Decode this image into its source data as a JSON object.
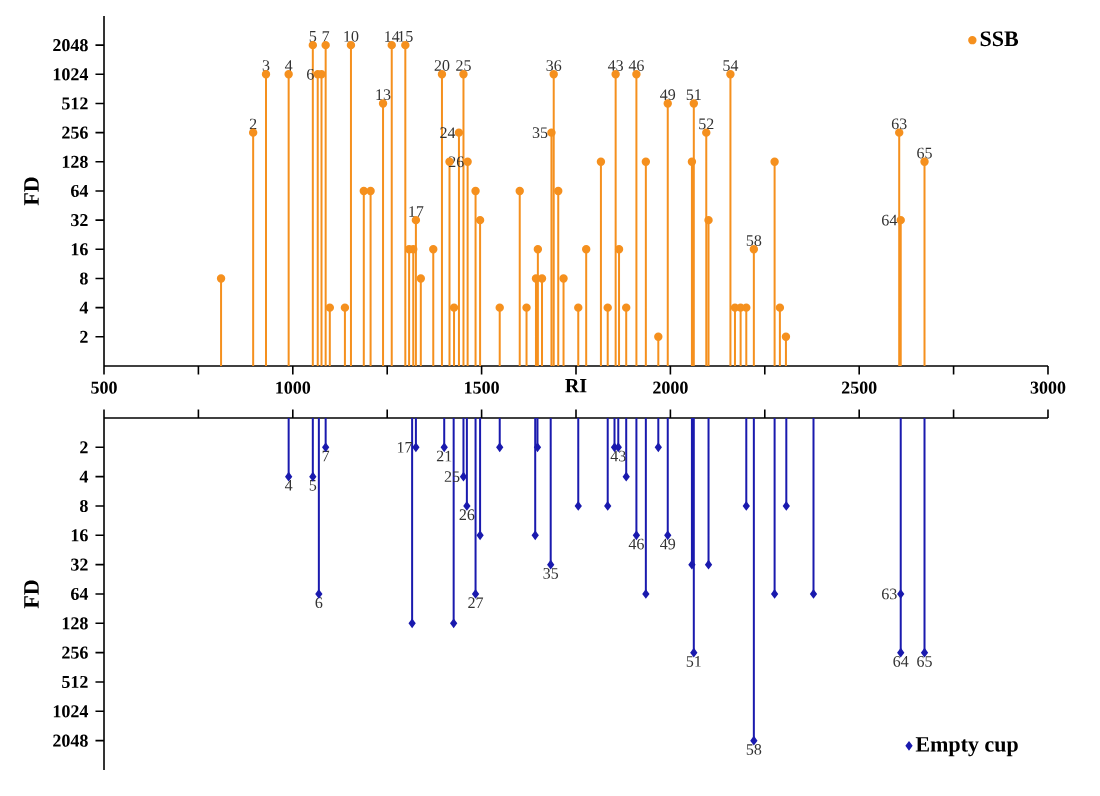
{
  "chart_data": [
    {
      "type": "lollipop",
      "xlabel": "RI",
      "ylabel": "FD",
      "log": "y",
      "legend": "top right",
      "marker": "circle",
      "tick_labels": "both",
      "xlim": [
        500,
        3000
      ],
      "xticks": [
        500,
        {
          "value": 750,
          "label": null
        },
        1000,
        {
          "value": 1250,
          "label": null
        },
        1500,
        {
          "value": 1750,
          "label": null
        },
        2000,
        {
          "value": 2250,
          "label": null
        },
        2500,
        {
          "value": 2750,
          "label": null
        },
        3000
      ],
      "ylim": [
        1,
        4096
      ],
      "yticks": [
        2,
        4,
        8,
        16,
        32,
        64,
        128,
        256,
        512,
        1024,
        2048
      ],
      "series": [
        {
          "name": "SSB",
          "color": "#f5901e",
          "x": [
            810,
            895,
            929,
            989,
            1053,
            1066,
            1076,
            1087,
            1098,
            1138,
            1154,
            1188,
            1206,
            1239,
            1262,
            1298,
            1308,
            1319,
            1326,
            1339,
            1372,
            1395,
            1415,
            1427,
            1440,
            1452,
            1463,
            1484,
            1496,
            1548,
            1601,
            1619,
            1644,
            1649,
            1660,
            1685,
            1691,
            1703,
            1717,
            1756,
            1777,
            1816,
            1834,
            1855,
            1864,
            1883,
            1910,
            1935,
            1968,
            1993,
            2057,
            2062,
            2095,
            2101,
            2159,
            2171,
            2186,
            2201,
            2221,
            2276,
            2290,
            2306,
            2606,
            2610,
            2673
          ],
          "values": [
            8,
            256,
            1024,
            1024,
            2048,
            1024,
            1024,
            2048,
            4,
            4,
            2048,
            64,
            64,
            512,
            2048,
            2048,
            16,
            16,
            32,
            8,
            16,
            1024,
            128,
            4,
            256,
            1024,
            128,
            64,
            32,
            4,
            64,
            4,
            8,
            16,
            8,
            256,
            1024,
            64,
            8,
            4,
            16,
            128,
            4,
            1024,
            16,
            4,
            1024,
            128,
            2,
            512,
            128,
            512,
            256,
            32,
            1024,
            4,
            4,
            4,
            16,
            128,
            4,
            2,
            256,
            32,
            128
          ]
        }
      ],
      "annotations": [
        {
          "text": "2",
          "x": 895,
          "y": 256
        },
        {
          "text": "3",
          "x": 929,
          "y": 1024
        },
        {
          "text": "4",
          "x": 989,
          "y": 1024
        },
        {
          "text": "5",
          "x": 1053,
          "y": 2048
        },
        {
          "text": "6",
          "x": 1066,
          "y": 1024
        },
        {
          "text": "7",
          "x": 1087,
          "y": 2048
        },
        {
          "text": "10",
          "x": 1154,
          "y": 2048
        },
        {
          "text": "13",
          "x": 1239,
          "y": 512
        },
        {
          "text": "14",
          "x": 1262,
          "y": 2048
        },
        {
          "text": "15",
          "x": 1298,
          "y": 2048
        },
        {
          "text": "17",
          "x": 1326,
          "y": 32
        },
        {
          "text": "20",
          "x": 1395,
          "y": 1024
        },
        {
          "text": "24",
          "x": 1440,
          "y": 256
        },
        {
          "text": "25",
          "x": 1452,
          "y": 1024
        },
        {
          "text": "26",
          "x": 1463,
          "y": 128
        },
        {
          "text": "35",
          "x": 1685,
          "y": 256
        },
        {
          "text": "36",
          "x": 1691,
          "y": 1024
        },
        {
          "text": "43",
          "x": 1855,
          "y": 1024
        },
        {
          "text": "46",
          "x": 1910,
          "y": 1024
        },
        {
          "text": "49",
          "x": 1993,
          "y": 512
        },
        {
          "text": "51",
          "x": 2062,
          "y": 512
        },
        {
          "text": "52",
          "x": 2095,
          "y": 256
        },
        {
          "text": "54",
          "x": 2159,
          "y": 1024
        },
        {
          "text": "58",
          "x": 2221,
          "y": 16
        },
        {
          "text": "63",
          "x": 2606,
          "y": 256
        },
        {
          "text": "64",
          "x": 2610,
          "y": 32
        },
        {
          "text": "65",
          "x": 2673,
          "y": 128
        }
      ]
    },
    {
      "type": "lollipop",
      "ylabel": "FD",
      "log": "y",
      "legend": "bottom right",
      "marker": "diamond",
      "tick_labels": "y",
      "xlim": [
        500,
        3000
      ],
      "xticks": [
        500,
        {
          "value": 750,
          "label": null
        },
        1000,
        {
          "value": 1250,
          "label": null
        },
        1500,
        {
          "value": 1750,
          "label": null
        },
        2000,
        {
          "value": 2250,
          "label": null
        },
        2500,
        {
          "value": 2750,
          "label": null
        },
        3000
      ],
      "ylim": [
        4096,
        1
      ],
      "yticks": [
        2,
        4,
        8,
        16,
        32,
        64,
        128,
        256,
        512,
        1024,
        2048
      ],
      "series": [
        {
          "name": "Empty cup",
          "color": "#1a1aae",
          "x": [
            989,
            1053,
            1069,
            1087,
            1316,
            1326,
            1401,
            1426,
            1452,
            1461,
            1484,
            1496,
            1548,
            1642,
            1648,
            1683,
            1756,
            1834,
            1852,
            1862,
            1883,
            1910,
            1935,
            1968,
            1993,
            2057,
            2062,
            2101,
            2201,
            2221,
            2276,
            2307,
            2379,
            2610,
            2610,
            2673
          ],
          "values": [
            4,
            4,
            64,
            2,
            128,
            2,
            2,
            128,
            4,
            8,
            64,
            16,
            2,
            16,
            2,
            32,
            8,
            8,
            2,
            2,
            4,
            16,
            64,
            2,
            16,
            32,
            256,
            32,
            8,
            2048,
            64,
            8,
            64,
            64,
            256,
            256
          ]
        }
      ],
      "annotations": [
        {
          "text": "4",
          "x": 989,
          "y": 4
        },
        {
          "text": "5",
          "x": 1053,
          "y": 4
        },
        {
          "text": "6",
          "x": 1069,
          "y": 64
        },
        {
          "text": "7",
          "x": 1087,
          "y": 2
        },
        {
          "text": "17",
          "x": 1326,
          "y": 2
        },
        {
          "text": "21",
          "x": 1401,
          "y": 2
        },
        {
          "text": "25",
          "x": 1452,
          "y": 4
        },
        {
          "text": "26",
          "x": 1461,
          "y": 8
        },
        {
          "text": "27",
          "x": 1484,
          "y": 64
        },
        {
          "text": "35",
          "x": 1683,
          "y": 32
        },
        {
          "text": "43",
          "x": 1862,
          "y": 2
        },
        {
          "text": "46",
          "x": 1910,
          "y": 16
        },
        {
          "text": "49",
          "x": 1993,
          "y": 16
        },
        {
          "text": "51",
          "x": 2062,
          "y": 256
        },
        {
          "text": "58",
          "x": 2221,
          "y": 2048
        },
        {
          "text": "63",
          "x": 2610,
          "y": 64
        },
        {
          "text": "64",
          "x": 2610,
          "y": 256
        },
        {
          "text": "65",
          "x": 2673,
          "y": 256
        }
      ]
    }
  ]
}
